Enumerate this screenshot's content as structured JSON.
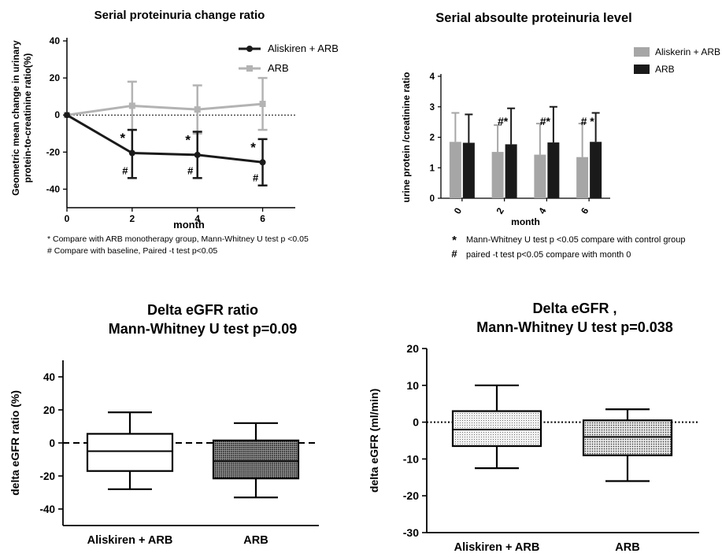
{
  "chart_data": [
    {
      "type": "line",
      "title": "Serial proteinuria change ratio",
      "ylabel": "Geometric mean change in urinary protein-to-creatinine ratio(%)",
      "ylabel_lines": [
        "Geometric mean change in urinary",
        "protein-to-creatinine ratio(%)"
      ],
      "xlabel": "month",
      "x": [
        0,
        2,
        4,
        6
      ],
      "xlim": [
        0,
        7
      ],
      "ylim": [
        -50,
        40
      ],
      "xticks": [
        "0",
        "2",
        "4",
        "6"
      ],
      "yticks": [
        "40",
        "20",
        "0",
        "-20",
        "-40"
      ],
      "reference_line": 0,
      "legend_position": "top-right",
      "series": [
        {
          "name": "Aliskiren + ARB",
          "color": "#1a1a1a",
          "values": [
            0,
            -20.5,
            -21.5,
            -25.5
          ],
          "err_low": [
            0,
            -34,
            -34,
            -38
          ],
          "err_high": [
            0,
            -8,
            -9,
            -13
          ],
          "markers": [
            {
              "x": 2,
              "above": "*",
              "below": "#"
            },
            {
              "x": 4,
              "above": "*",
              "below": "#"
            },
            {
              "x": 6,
              "above": "*",
              "below": "#"
            }
          ]
        },
        {
          "name": "ARB",
          "color": "#b3b3b3",
          "values": [
            0,
            5,
            3,
            6
          ],
          "err_low": [
            0,
            -8,
            -10,
            -8
          ],
          "err_high": [
            0,
            18,
            16,
            20
          ]
        }
      ],
      "footnotes": [
        "* Compare with ARB monotherapy group, Mann-Whitney U test p <0.05",
        "# Compare with baseline, Paired -t test p<0.05"
      ]
    },
    {
      "type": "bar",
      "title": "Serial absoulte proteinuria level",
      "ylabel": "urine protein /creatinine ratio",
      "xlabel": "month",
      "categories": [
        "0",
        "2",
        "4",
        "6"
      ],
      "ylim": [
        0,
        4
      ],
      "yticks": [
        "4",
        "3",
        "2",
        "1",
        "0"
      ],
      "legend_position": "top-right",
      "series": [
        {
          "name": "Aliskerin + ARB",
          "color": "#a6a6a6",
          "values": [
            1.85,
            1.52,
            1.43,
            1.35
          ],
          "err": [
            2.8,
            2.4,
            2.45,
            2.45
          ]
        },
        {
          "name": "ARB",
          "color": "#1a1a1a",
          "values": [
            1.82,
            1.77,
            1.83,
            1.85
          ],
          "err": [
            2.75,
            2.95,
            3.0,
            2.8
          ]
        }
      ],
      "annotations": [
        "",
        "#*",
        "#*",
        "# *"
      ],
      "footnotes": [
        "Mann-Whitney U test p <0.05 compare with control group",
        "paired -t test p<0.05 compare with month 0"
      ],
      "footnote_symbols": [
        "*",
        "#"
      ]
    },
    {
      "type": "box",
      "title": "Delta eGFR ratio",
      "subtitle": "Mann-Whitney U test p=0.09",
      "ylabel": "delta eGFR ratio (%)",
      "categories": [
        "Aliskiren + ARB",
        "ARB"
      ],
      "ylim": [
        -50,
        50
      ],
      "yticks": [
        "40",
        "20",
        "0",
        "-20",
        "-40"
      ],
      "reference_line": 0,
      "boxes": [
        {
          "min": -28,
          "q1": -17,
          "median": -5,
          "q3": 5.5,
          "max": 18.5,
          "fill": "plain"
        },
        {
          "min": -33,
          "q1": -21.5,
          "median": -11,
          "q3": 1.5,
          "max": 12,
          "fill": "dense"
        }
      ]
    },
    {
      "type": "box",
      "title": "Delta eGFR ,",
      "subtitle": "Mann-Whitney U   test p=0.038",
      "ylabel": "delta eGFR  (ml/min)",
      "categories": [
        "Aliskiren + ARB",
        "ARB"
      ],
      "ylim": [
        -30,
        20
      ],
      "yticks": [
        "20",
        "10",
        "0",
        "-10",
        "-20",
        "-30"
      ],
      "reference_line": 0,
      "boxes": [
        {
          "min": -12.5,
          "q1": -6.5,
          "median": -2,
          "q3": 3,
          "max": 10,
          "fill": "light"
        },
        {
          "min": -16,
          "q1": -9,
          "median": -4,
          "q3": 0.5,
          "max": 3.5,
          "fill": "medium"
        }
      ]
    }
  ]
}
